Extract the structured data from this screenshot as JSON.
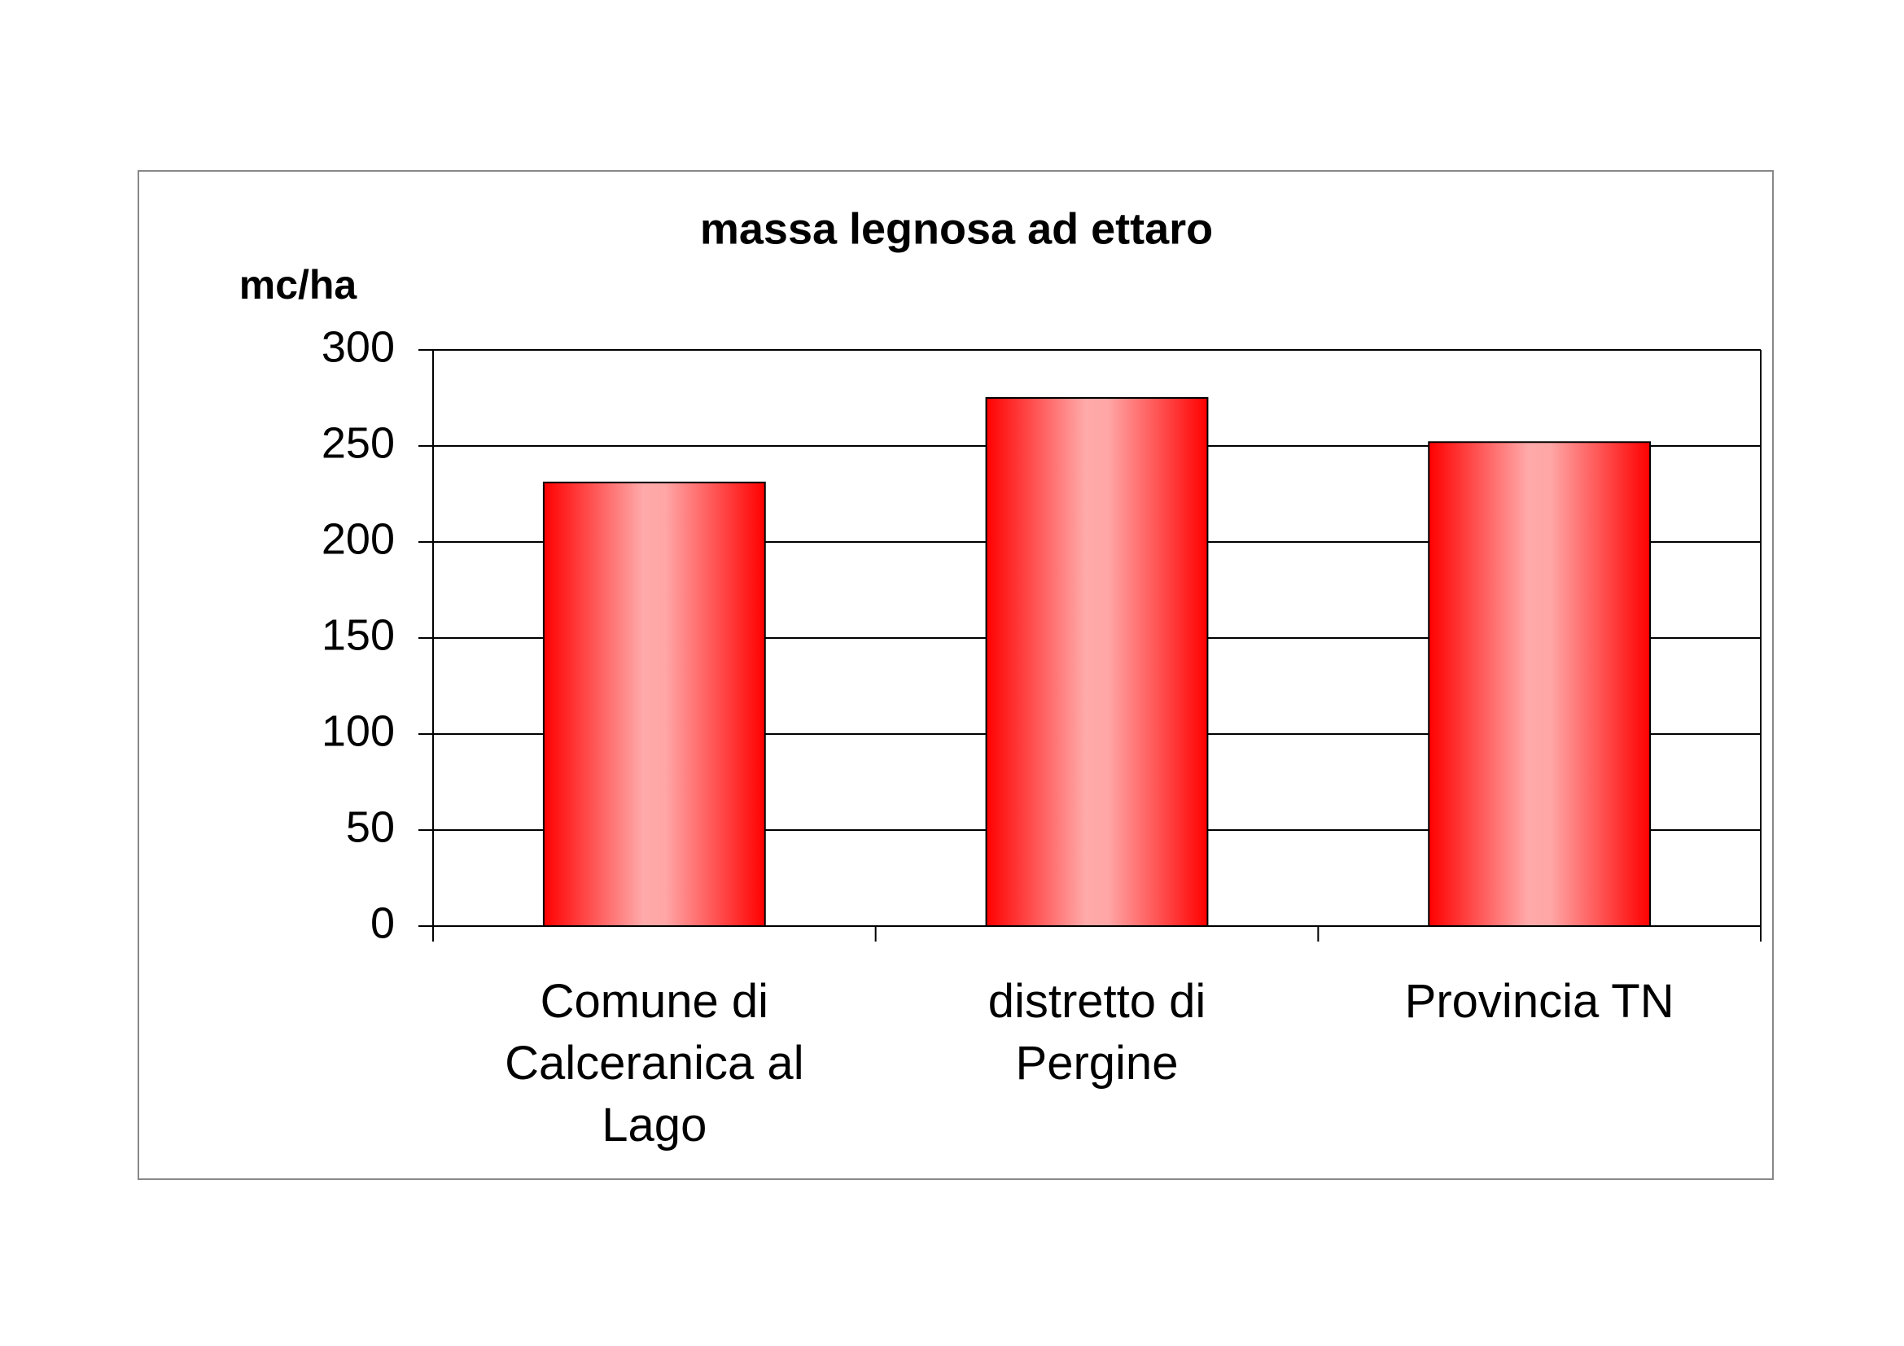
{
  "chart_data": {
    "type": "bar",
    "title": "massa legnosa ad ettaro",
    "y_label": "mc/ha",
    "categories": [
      "Comune di Calceranica al Lago",
      "distretto di Pergine",
      "Provincia TN"
    ],
    "values": [
      231,
      275,
      252
    ],
    "color": "#ff0000",
    "ylim": [
      0,
      300
    ],
    "yticks": [
      0,
      50,
      100,
      150,
      200,
      250,
      300
    ],
    "grid": true
  }
}
